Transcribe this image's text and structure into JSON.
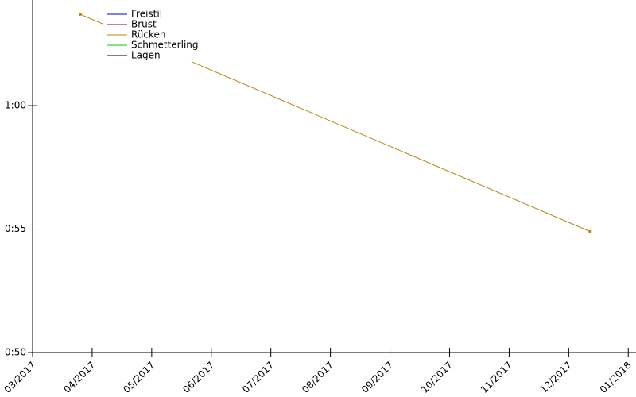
{
  "chart_data": {
    "type": "line",
    "x": [
      3.8,
      12.36
    ],
    "xlim": [
      3,
      13.13
    ],
    "xticks": [
      {
        "value": 3,
        "label": "03/2017"
      },
      {
        "value": 4,
        "label": "04/2017"
      },
      {
        "value": 5,
        "label": "05/2017"
      },
      {
        "value": 6,
        "label": "06/2017"
      },
      {
        "value": 7,
        "label": "07/2017"
      },
      {
        "value": 8,
        "label": "08/2017"
      },
      {
        "value": 9,
        "label": "09/2017"
      },
      {
        "value": 10,
        "label": "10/2017"
      },
      {
        "value": 11,
        "label": "11/2017"
      },
      {
        "value": 12,
        "label": "12/2017"
      },
      {
        "value": 13,
        "label": "01/2018"
      }
    ],
    "ylim": [
      50,
      64.28
    ],
    "yticks": [
      {
        "value": 50,
        "label": "0:50"
      },
      {
        "value": 55,
        "label": "0:55"
      },
      {
        "value": 60,
        "label": "1:00"
      }
    ],
    "series": [
      {
        "name": "Freistil",
        "color": "#0000cc",
        "values": [
          null,
          null
        ]
      },
      {
        "name": "Brust",
        "color": "#a00000",
        "values": [
          null,
          null
        ]
      },
      {
        "name": "Rücken",
        "color": "#b8860b",
        "values": [
          63.7,
          54.9
        ]
      },
      {
        "name": "Schmetterling",
        "color": "#00cc00",
        "values": [
          null,
          null
        ]
      },
      {
        "name": "Lagen",
        "color": "#000000",
        "values": [
          null,
          null
        ]
      }
    ],
    "legend": "top-left"
  }
}
